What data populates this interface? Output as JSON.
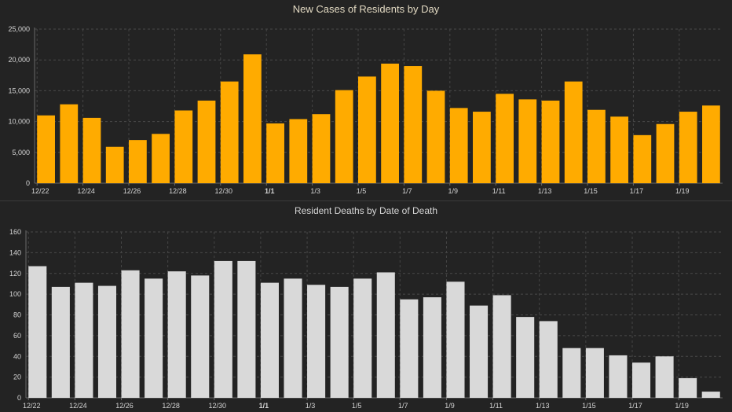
{
  "chart_data": [
    {
      "type": "bar",
      "title": "New Cases of Residents by Day",
      "categories": [
        "12/22",
        "12/23",
        "12/24",
        "12/25",
        "12/26",
        "12/27",
        "12/28",
        "12/29",
        "12/30",
        "12/31",
        "1/1",
        "1/2",
        "1/3",
        "1/4",
        "1/5",
        "1/6",
        "1/7",
        "1/8",
        "1/9",
        "1/10",
        "1/11",
        "1/12",
        "1/13",
        "1/14",
        "1/15",
        "1/16",
        "1/17",
        "1/18",
        "1/19",
        "1/20"
      ],
      "values": [
        11000,
        12800,
        10600,
        5900,
        7000,
        8000,
        11800,
        13400,
        16500,
        20900,
        9700,
        10400,
        11200,
        15100,
        17300,
        19400,
        19000,
        15000,
        12200,
        11600,
        14500,
        13600,
        13400,
        16500,
        11900,
        10800,
        7800,
        9600,
        11600,
        12600
      ],
      "tick_labels": [
        "12/22",
        "",
        "12/24",
        "",
        "12/26",
        "",
        "12/28",
        "",
        "12/30",
        "",
        "1/1",
        "",
        "1/3",
        "",
        "1/5",
        "",
        "1/7",
        "",
        "1/9",
        "",
        "1/11",
        "",
        "1/13",
        "",
        "1/15",
        "",
        "1/17",
        "",
        "1/19",
        ""
      ],
      "bold_tick": "1/1",
      "yticks": [
        "0",
        "5,000",
        "10,000",
        "15,000",
        "20,000",
        "25,000"
      ],
      "ylim": [
        0,
        25000
      ],
      "ytick_step": 5000,
      "color": "#ffab00",
      "grid": true
    },
    {
      "type": "bar",
      "title": "Resident Deaths by Date of Death",
      "categories": [
        "12/22",
        "12/23",
        "12/24",
        "12/25",
        "12/26",
        "12/27",
        "12/28",
        "12/29",
        "12/30",
        "12/31",
        "1/1",
        "1/2",
        "1/3",
        "1/4",
        "1/5",
        "1/6",
        "1/7",
        "1/8",
        "1/9",
        "1/10",
        "1/11",
        "1/12",
        "1/13",
        "1/14",
        "1/15",
        "1/16",
        "1/17",
        "1/18",
        "1/19",
        "1/20"
      ],
      "values": [
        127,
        107,
        111,
        108,
        123,
        115,
        122,
        118,
        132,
        132,
        111,
        115,
        109,
        107,
        115,
        121,
        95,
        97,
        112,
        89,
        99,
        78,
        74,
        48,
        48,
        41,
        34,
        40,
        19,
        6
      ],
      "tick_labels": [
        "12/22",
        "",
        "12/24",
        "",
        "12/26",
        "",
        "12/28",
        "",
        "12/30",
        "",
        "1/1",
        "",
        "1/3",
        "",
        "1/5",
        "",
        "1/7",
        "",
        "1/9",
        "",
        "1/11",
        "",
        "1/13",
        "",
        "1/15",
        "",
        "1/17",
        "",
        "1/19",
        ""
      ],
      "bold_tick": "1/1",
      "yticks": [
        "0",
        "20",
        "40",
        "60",
        "80",
        "100",
        "120",
        "140",
        "160"
      ],
      "ylim": [
        0,
        160
      ],
      "ytick_step": 20,
      "color": "#d9d9d9",
      "grid": true
    }
  ]
}
